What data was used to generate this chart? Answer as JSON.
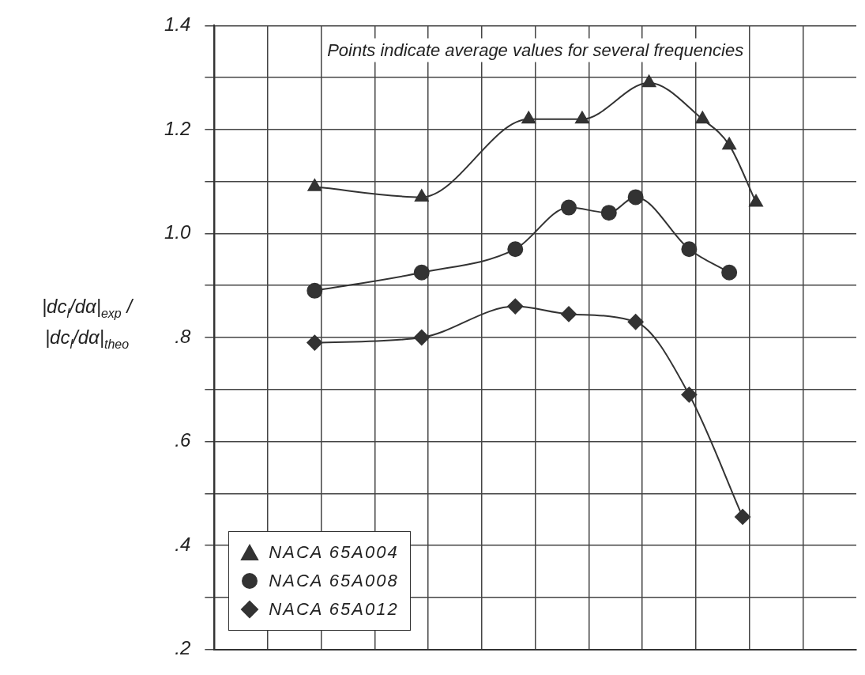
{
  "chart_data": {
    "type": "line",
    "ylabel": "|dc$_{l}$/dα|$_{exp}$ / |dc$_{l}$/dα|$_{theo}$",
    "categories": [
      null,
      null,
      null,
      null,
      null,
      null,
      null,
      null,
      null,
      null,
      null,
      null,
      null,
      null,
      null,
      null,
      null,
      null,
      null,
      null,
      null,
      null,
      null,
      null,
      null,
      null,
      null,
      null,
      null,
      null,
      null,
      null,
      null,
      null,
      null,
      null,
      null,
      null,
      null,
      null,
      null,
      null,
      null,
      null,
      null,
      null,
      null,
      null
    ],
    "series": [
      {
        "name": "NACA 65A004",
        "color": "#333333",
        "marker": "triangle",
        "values": [
          null,
          null,
          null,
          null,
          null,
          null,
          null,
          1.09,
          null,
          null,
          null,
          null,
          null,
          null,
          null,
          1.07,
          null,
          null,
          null,
          null,
          null,
          null,
          null,
          1.22,
          null,
          null,
          null,
          1.22,
          null,
          null,
          null,
          null,
          1.29,
          null,
          null,
          null,
          1.22,
          null,
          1.17,
          null,
          1.06,
          null,
          null,
          null,
          null,
          null,
          null,
          null
        ]
      },
      {
        "name": "NACA 65A008",
        "color": "#333333",
        "marker": "circle",
        "values": [
          null,
          null,
          null,
          null,
          null,
          null,
          null,
          0.89,
          null,
          null,
          null,
          null,
          null,
          null,
          null,
          0.925,
          null,
          null,
          null,
          null,
          null,
          null,
          0.97,
          null,
          null,
          null,
          1.05,
          null,
          null,
          1.04,
          null,
          1.07,
          null,
          null,
          null,
          0.97,
          null,
          null,
          0.925,
          null,
          null,
          null,
          null,
          null,
          null,
          null,
          null,
          null
        ]
      },
      {
        "name": "NACA 65A012",
        "color": "#333333",
        "marker": "diamond",
        "values": [
          null,
          null,
          null,
          null,
          null,
          null,
          null,
          0.79,
          null,
          null,
          null,
          null,
          null,
          null,
          null,
          0.8,
          null,
          null,
          null,
          null,
          null,
          null,
          0.86,
          null,
          null,
          null,
          0.845,
          null,
          null,
          null,
          null,
          0.83,
          null,
          null,
          null,
          0.69,
          null,
          null,
          null,
          0.455,
          null,
          null,
          null,
          null,
          null,
          null,
          null,
          null
        ]
      }
    ],
    "ylim": [
      0.2,
      1.4
    ],
    "yticks": [
      {
        "value": 0.2,
        "label": ".2"
      },
      {
        "value": 0.3,
        "label": null
      },
      {
        "value": 0.4,
        "label": ".4"
      },
      {
        "value": 0.5,
        "label": null
      },
      {
        "value": 0.6,
        "label": ".6"
      },
      {
        "value": 0.7,
        "label": null
      },
      {
        "value": 0.8,
        "label": ".8"
      },
      {
        "value": 0.9,
        "label": null
      },
      {
        "value": 1.0,
        "label": "1.0"
      },
      {
        "value": 1.1,
        "label": null
      },
      {
        "value": 1.2,
        "label": "1.2"
      },
      {
        "value": 1.3,
        "label": null
      },
      {
        "value": 1.4,
        "label": "1.4"
      }
    ],
    "tick_labels": "y",
    "grid": true,
    "legend": "bottom left",
    "annotations": [
      "Points indicate average values for several frequencies"
    ]
  }
}
